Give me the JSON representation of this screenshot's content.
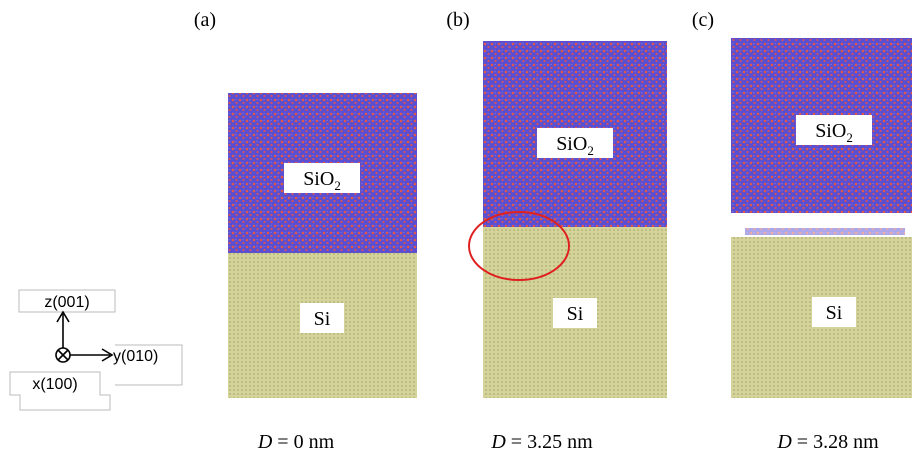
{
  "panels": [
    {
      "label": "(a)",
      "top": {
        "base": "SiO",
        "sub": "2"
      },
      "bottom": "Si",
      "caption": {
        "var": "D",
        "rest": " = 0 nm"
      }
    },
    {
      "label": "(b)",
      "top": {
        "base": "SiO",
        "sub": "2"
      },
      "bottom": "Si",
      "caption": {
        "var": "D",
        "rest": " = 3.25 nm"
      }
    },
    {
      "label": "(c)",
      "top": {
        "base": "SiO",
        "sub": "2"
      },
      "bottom": "Si",
      "caption": {
        "var": "D",
        "rest": " = 3.28 nm"
      }
    }
  ],
  "axes": {
    "z": "z(001)",
    "y": "y(010)",
    "x": "x(100)"
  }
}
